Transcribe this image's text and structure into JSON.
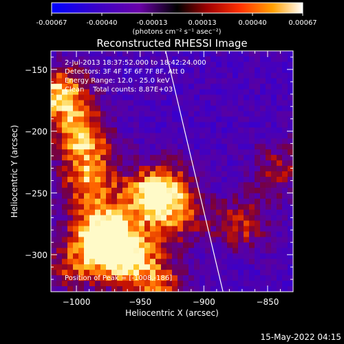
{
  "colorbar": {
    "ticks": [
      "-0.00067",
      "-0.00040",
      "-0.00013",
      "0.00013",
      "0.00040",
      "0.00067"
    ],
    "unit_label": "(photons cm⁻² s⁻¹ asec⁻²)",
    "colors": [
      "#0000ff",
      "#2a00d0",
      "#5a00a8",
      "#7a00a0",
      "#000000",
      "#900000",
      "#ff2000",
      "#ff8000",
      "#ffd000",
      "#ffffff"
    ]
  },
  "chart_data": {
    "type": "heatmap",
    "title": "Reconstructed RHESSI Image",
    "xlabel": "Heliocentric X (arcsec)",
    "ylabel": "Heliocentric Y (arcsec)",
    "xlim": [
      -1020,
      -830
    ],
    "ylim": [
      -330,
      -135
    ],
    "x_ticks": [
      -1000,
      -950,
      -900,
      -850
    ],
    "y_ticks": [
      -150,
      -200,
      -250,
      -300
    ],
    "x_tick_labels": [
      "−1000",
      "−950",
      "−900",
      "−850"
    ],
    "y_tick_labels": [
      "−150",
      "−200",
      "−250",
      "−300"
    ],
    "hot_regions": [
      {
        "x": -1012,
        "y": -170,
        "v": 0.95
      },
      {
        "x": -995,
        "y": -205,
        "v": 0.8
      },
      {
        "x": -990,
        "y": -240,
        "v": 0.75
      },
      {
        "x": -982,
        "y": -280,
        "v": 0.9
      },
      {
        "x": -970,
        "y": -300,
        "v": 0.7
      },
      {
        "x": -945,
        "y": -255,
        "v": 0.65
      },
      {
        "x": -930,
        "y": -245,
        "v": 0.6
      },
      {
        "x": -955,
        "y": -300,
        "v": 0.55
      },
      {
        "x": -920,
        "y": -270,
        "v": 0.5
      },
      {
        "x": -870,
        "y": -275,
        "v": 0.55
      },
      {
        "x": -840,
        "y": -230,
        "v": 0.45
      },
      {
        "x": -935,
        "y": -325,
        "v": 0.6
      },
      {
        "x": -1005,
        "y": -310,
        "v": 0.5
      }
    ],
    "limb_line": [
      [
        -930,
        -135
      ],
      [
        -885,
        -330
      ]
    ],
    "annotations": [
      "2-Jul-2013 18:37:52.000 to 18:42:24.000",
      "Detectors: 3F 4F 5F 6F 7F 8F, Att 0",
      "Energy Range: 12.0 - 25.0 keV",
      "Clean    Total counts: 8.87E+03"
    ],
    "peak_label": "Position of Peak = [-1008,-186]"
  },
  "footer": {
    "date": "15-May-2022 04:15"
  }
}
